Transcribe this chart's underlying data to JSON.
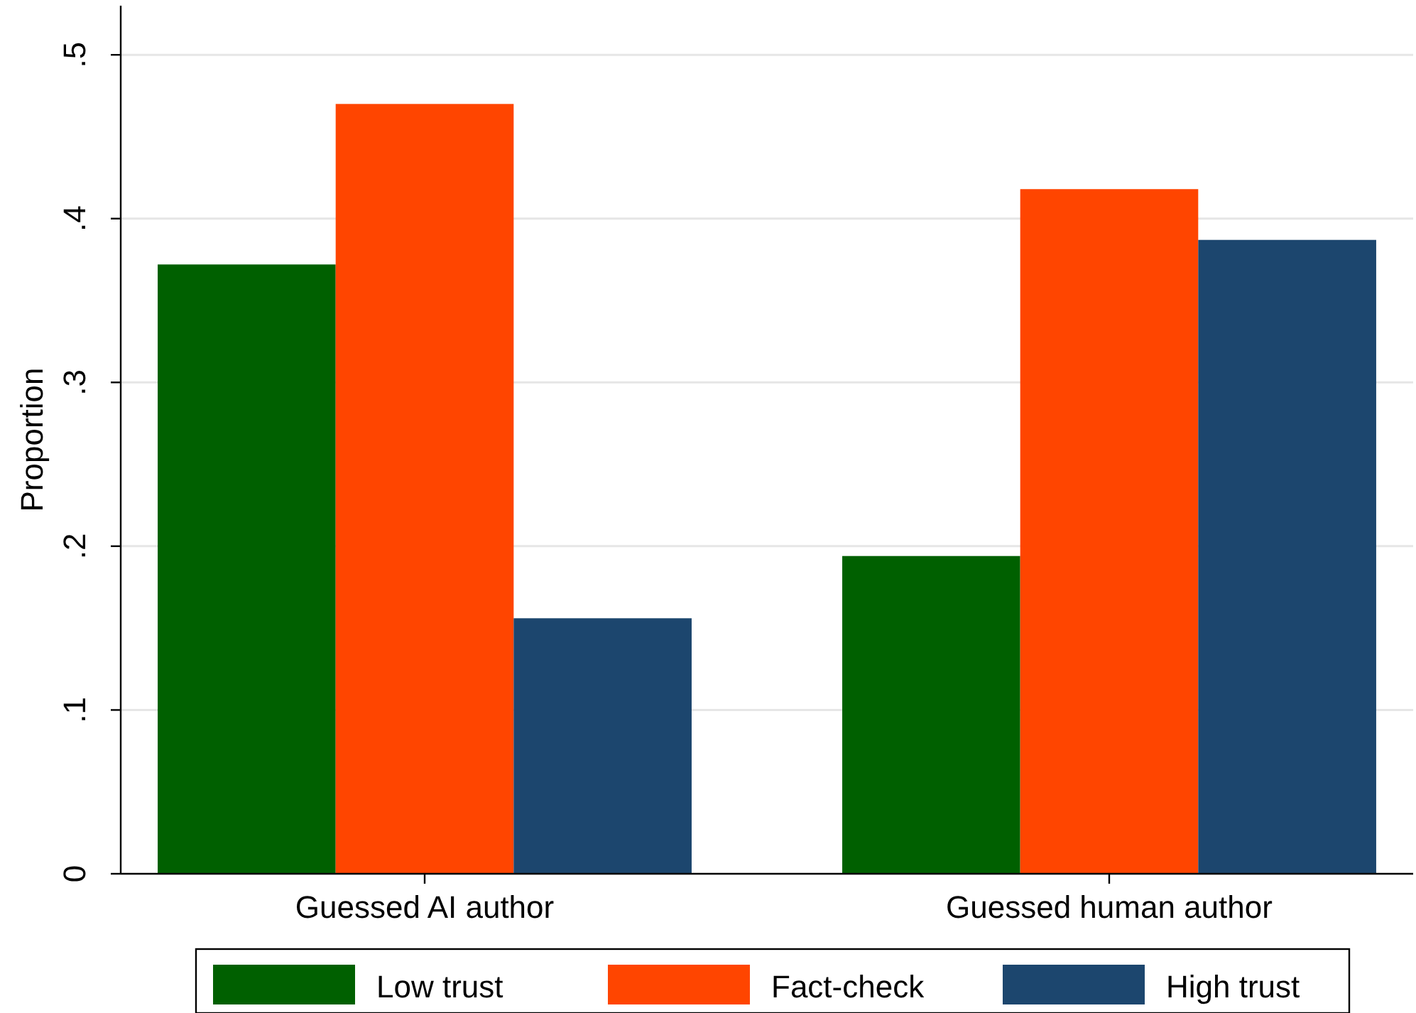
{
  "chart_data": {
    "type": "bar",
    "ylabel": "Proportion",
    "categories": [
      "Guessed AI author",
      "Guessed human author"
    ],
    "series": [
      {
        "name": "Low trust",
        "color": "#006000",
        "values": [
          0.372,
          0.194
        ]
      },
      {
        "name": "Fact-check",
        "color": "#ff4500",
        "values": [
          0.47,
          0.418
        ]
      },
      {
        "name": "High trust",
        "color": "#1c466e",
        "values": [
          0.156,
          0.387
        ]
      }
    ],
    "ylim": [
      0,
      0.53
    ],
    "yticks": [
      {
        "value": 0,
        "label": "0"
      },
      {
        "value": 0.1,
        "label": ".1"
      },
      {
        "value": 0.2,
        "label": ".2"
      },
      {
        "value": 0.3,
        "label": ".3"
      },
      {
        "value": 0.4,
        "label": ".4"
      },
      {
        "value": 0.5,
        "label": ".5"
      }
    ],
    "grid": "y",
    "legend": "bottom"
  }
}
